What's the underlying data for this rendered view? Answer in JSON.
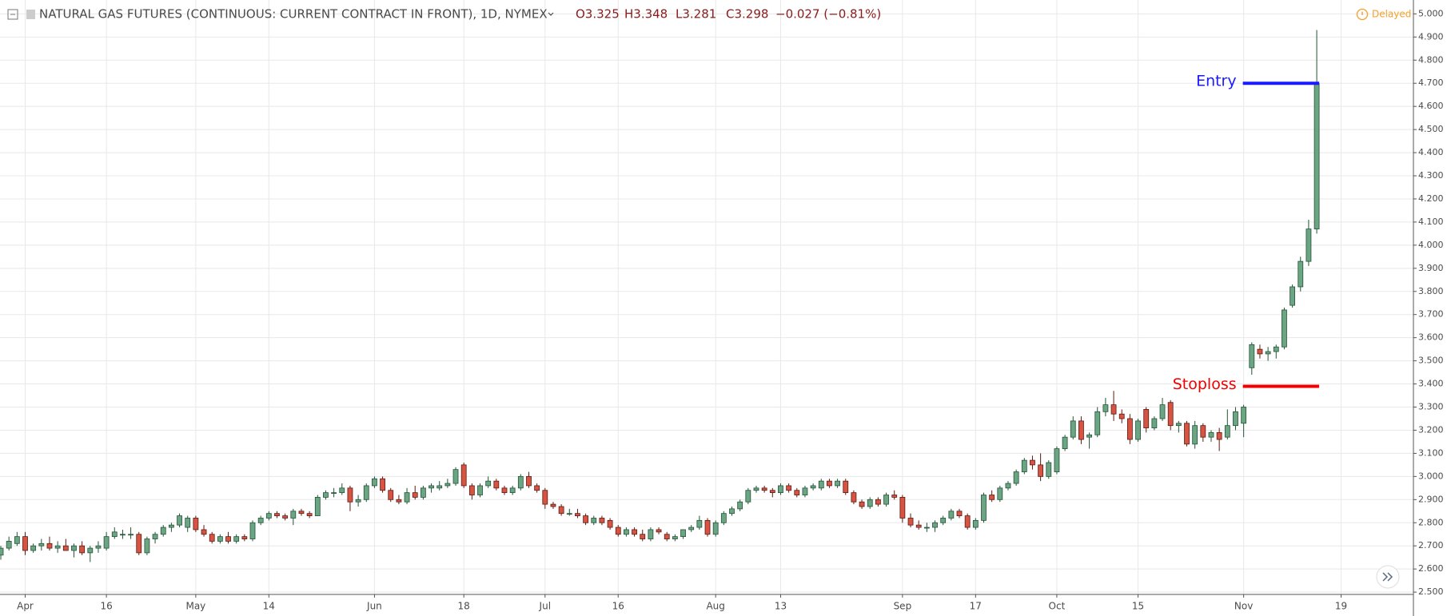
{
  "header": {
    "symbol": "NATURAL GAS FUTURES (CONTINUOUS: CURRENT CONTRACT IN FRONT), 1D, NYMEX",
    "open": "O3.325",
    "high": "H3.348",
    "low": "L3.281",
    "close": "C3.298",
    "change": "−0.027 (−0.81%)",
    "status": "Delayed"
  },
  "chart_data": {
    "type": "candlestick",
    "categories": [
      null,
      null,
      null,
      "Apr",
      null,
      null,
      null,
      null,
      null,
      null,
      null,
      null,
      null,
      "16",
      null,
      null,
      null,
      null,
      null,
      null,
      null,
      null,
      null,
      null,
      "May",
      null,
      null,
      null,
      null,
      null,
      null,
      null,
      null,
      "14",
      null,
      null,
      null,
      null,
      null,
      null,
      null,
      null,
      null,
      null,
      null,
      null,
      "Jun",
      null,
      null,
      null,
      null,
      null,
      null,
      null,
      null,
      null,
      null,
      "18",
      null,
      null,
      null,
      null,
      null,
      null,
      null,
      null,
      null,
      "Jul",
      null,
      null,
      null,
      null,
      null,
      null,
      null,
      null,
      "16",
      null,
      null,
      null,
      null,
      null,
      null,
      null,
      null,
      null,
      null,
      null,
      "Aug",
      null,
      null,
      null,
      null,
      null,
      null,
      null,
      "13",
      null,
      null,
      null,
      null,
      null,
      null,
      null,
      null,
      null,
      null,
      null,
      null,
      null,
      null,
      "Sep",
      null,
      null,
      null,
      null,
      null,
      null,
      null,
      null,
      "17",
      null,
      null,
      null,
      null,
      null,
      null,
      null,
      null,
      null,
      "Oct",
      null,
      null,
      null,
      null,
      null,
      null,
      null,
      null,
      null,
      "15",
      null,
      null,
      null,
      null,
      null,
      null,
      null,
      null,
      null,
      null,
      null,
      null,
      "Nov",
      null,
      null,
      null,
      null,
      null,
      null,
      null,
      null,
      null,
      null,
      null,
      "19",
      null,
      null,
      null,
      null,
      null,
      null,
      null,
      null
    ],
    "open": [
      2.66,
      2.69,
      2.71,
      2.74,
      2.68,
      2.7,
      2.71,
      2.69,
      2.7,
      2.68,
      2.7,
      2.67,
      2.69,
      2.69,
      2.74,
      2.75,
      2.75,
      2.75,
      2.67,
      2.73,
      2.75,
      2.78,
      2.79,
      2.78,
      2.82,
      2.77,
      2.75,
      2.72,
      2.74,
      2.72,
      2.74,
      2.73,
      2.8,
      2.82,
      2.84,
      2.83,
      2.82,
      2.85,
      2.84,
      2.83,
      2.91,
      2.93,
      2.93,
      2.95,
      2.89,
      2.9,
      2.96,
      2.99,
      2.94,
      2.9,
      2.89,
      2.93,
      2.91,
      2.95,
      2.95,
      2.96,
      2.97,
      3.05,
      2.96,
      2.92,
      2.96,
      2.98,
      2.95,
      2.93,
      2.95,
      3.0,
      2.96,
      2.94,
      2.88,
      2.87,
      2.84,
      2.84,
      2.83,
      2.8,
      2.82,
      2.81,
      2.78,
      2.75,
      2.77,
      2.75,
      2.73,
      2.77,
      2.75,
      2.73,
      2.74,
      2.77,
      2.78,
      2.81,
      2.75,
      2.8,
      2.84,
      2.86,
      2.89,
      2.94,
      2.95,
      2.94,
      2.93,
      2.96,
      2.94,
      2.92,
      2.95,
      2.95,
      2.98,
      2.96,
      2.98,
      2.93,
      2.89,
      2.87,
      2.9,
      2.88,
      2.92,
      2.91,
      2.82,
      2.79,
      2.78,
      2.78,
      2.8,
      2.82,
      2.85,
      2.83,
      2.78,
      2.81,
      2.92,
      2.9,
      2.95,
      2.97,
      3.02,
      3.07,
      3.05,
      3.0,
      3.02,
      3.12,
      3.17,
      3.24,
      3.17,
      3.18,
      3.28,
      3.31,
      3.27,
      3.25,
      3.16,
      3.29,
      3.21,
      3.25,
      3.32,
      3.22,
      3.23,
      3.14,
      3.22,
      3.17,
      3.19,
      3.17,
      3.22,
      3.23,
      3.47,
      3.55,
      3.53,
      3.54,
      3.56,
      3.74,
      3.82,
      3.93,
      4.07,
      null,
      null,
      null,
      null,
      null,
      null,
      null,
      null,
      null,
      null,
      null
    ],
    "high": [
      2.7,
      2.74,
      2.76,
      2.76,
      2.71,
      2.73,
      2.74,
      2.72,
      2.73,
      2.71,
      2.72,
      2.7,
      2.72,
      2.76,
      2.78,
      2.77,
      2.78,
      2.76,
      2.74,
      2.76,
      2.79,
      2.8,
      2.84,
      2.83,
      2.83,
      2.79,
      2.76,
      2.75,
      2.76,
      2.75,
      2.75,
      2.81,
      2.83,
      2.85,
      2.85,
      2.84,
      2.86,
      2.86,
      2.85,
      2.92,
      2.94,
      2.95,
      2.97,
      2.96,
      2.92,
      2.97,
      3.0,
      3.0,
      2.95,
      2.92,
      2.95,
      2.96,
      2.96,
      2.97,
      2.98,
      2.99,
      3.04,
      3.06,
      2.97,
      2.97,
      3.0,
      2.99,
      2.96,
      2.96,
      3.01,
      3.02,
      2.97,
      2.95,
      2.89,
      2.88,
      2.86,
      2.86,
      2.84,
      2.83,
      2.83,
      2.82,
      2.79,
      2.78,
      2.78,
      2.77,
      2.78,
      2.78,
      2.76,
      2.75,
      2.77,
      2.79,
      2.83,
      2.82,
      2.81,
      2.85,
      2.87,
      2.9,
      2.95,
      2.96,
      2.96,
      2.95,
      2.97,
      2.97,
      2.95,
      2.96,
      2.97,
      2.99,
      2.99,
      2.99,
      2.99,
      2.94,
      2.9,
      2.91,
      2.91,
      2.93,
      2.94,
      2.92,
      2.84,
      2.81,
      2.8,
      2.81,
      2.83,
      2.86,
      2.86,
      2.84,
      2.82,
      2.93,
      2.94,
      2.96,
      2.98,
      3.03,
      3.08,
      3.09,
      3.1,
      3.07,
      3.13,
      3.18,
      3.26,
      3.26,
      3.19,
      3.3,
      3.34,
      3.37,
      3.29,
      3.27,
      3.25,
      3.3,
      3.26,
      3.34,
      3.33,
      3.24,
      3.24,
      3.24,
      3.23,
      3.2,
      3.21,
      3.29,
      3.3,
      3.31,
      3.58,
      3.57,
      3.56,
      3.57,
      3.73,
      3.83,
      3.95,
      4.11,
      4.93,
      null,
      null,
      null,
      null,
      null,
      null,
      null,
      null,
      null,
      null,
      null
    ],
    "low": [
      2.64,
      2.68,
      2.7,
      2.66,
      2.67,
      2.68,
      2.68,
      2.67,
      2.68,
      2.65,
      2.66,
      2.63,
      2.67,
      2.68,
      2.73,
      2.73,
      2.73,
      2.66,
      2.66,
      2.71,
      2.74,
      2.76,
      2.78,
      2.76,
      2.76,
      2.74,
      2.71,
      2.71,
      2.71,
      2.71,
      2.72,
      2.72,
      2.79,
      2.81,
      2.82,
      2.81,
      2.79,
      2.83,
      2.82,
      2.83,
      2.9,
      2.91,
      2.92,
      2.85,
      2.87,
      2.89,
      2.95,
      2.93,
      2.89,
      2.88,
      2.88,
      2.9,
      2.9,
      2.93,
      2.94,
      2.95,
      2.96,
      2.95,
      2.9,
      2.91,
      2.95,
      2.94,
      2.92,
      2.92,
      2.94,
      2.95,
      2.93,
      2.86,
      2.86,
      2.83,
      2.83,
      2.82,
      2.79,
      2.79,
      2.79,
      2.77,
      2.74,
      2.74,
      2.74,
      2.72,
      2.72,
      2.75,
      2.72,
      2.72,
      2.73,
      2.76,
      2.77,
      2.74,
      2.74,
      2.79,
      2.83,
      2.85,
      2.88,
      2.93,
      2.93,
      2.91,
      2.92,
      2.93,
      2.91,
      2.91,
      2.94,
      2.94,
      2.95,
      2.95,
      2.92,
      2.88,
      2.86,
      2.86,
      2.87,
      2.87,
      2.9,
      2.8,
      2.78,
      2.77,
      2.76,
      2.76,
      2.79,
      2.81,
      2.82,
      2.77,
      2.77,
      2.8,
      2.89,
      2.89,
      2.94,
      2.96,
      3.01,
      3.03,
      2.98,
      2.99,
      3.01,
      3.11,
      3.16,
      3.14,
      3.12,
      3.17,
      3.26,
      3.24,
      3.23,
      3.14,
      3.15,
      3.19,
      3.2,
      3.24,
      3.2,
      3.19,
      3.13,
      3.12,
      3.15,
      3.15,
      3.11,
      3.16,
      3.2,
      3.17,
      3.44,
      3.51,
      3.5,
      3.51,
      3.55,
      3.73,
      3.8,
      3.91,
      4.05,
      null,
      null,
      null,
      null,
      null,
      null,
      null,
      null,
      null,
      null,
      null
    ],
    "close": [
      2.69,
      2.72,
      2.74,
      2.68,
      2.7,
      2.71,
      2.69,
      2.7,
      2.68,
      2.7,
      2.67,
      2.69,
      2.7,
      2.74,
      2.76,
      2.75,
      2.75,
      2.67,
      2.73,
      2.75,
      2.78,
      2.79,
      2.83,
      2.82,
      2.77,
      2.75,
      2.72,
      2.74,
      2.72,
      2.74,
      2.73,
      2.8,
      2.82,
      2.84,
      2.83,
      2.82,
      2.85,
      2.84,
      2.83,
      2.91,
      2.93,
      2.93,
      2.95,
      2.89,
      2.9,
      2.96,
      2.99,
      2.94,
      2.9,
      2.89,
      2.93,
      2.91,
      2.95,
      2.96,
      2.96,
      2.97,
      3.03,
      2.96,
      2.92,
      2.96,
      2.98,
      2.95,
      2.93,
      2.95,
      3.0,
      2.96,
      2.94,
      2.88,
      2.87,
      2.84,
      2.84,
      2.83,
      2.8,
      2.82,
      2.8,
      2.78,
      2.75,
      2.77,
      2.75,
      2.73,
      2.77,
      2.76,
      2.73,
      2.74,
      2.77,
      2.78,
      2.81,
      2.75,
      2.8,
      2.84,
      2.86,
      2.89,
      2.94,
      2.95,
      2.94,
      2.93,
      2.96,
      2.94,
      2.92,
      2.95,
      2.96,
      2.98,
      2.96,
      2.98,
      2.93,
      2.89,
      2.87,
      2.9,
      2.88,
      2.92,
      2.91,
      2.82,
      2.79,
      2.78,
      2.78,
      2.8,
      2.82,
      2.85,
      2.83,
      2.78,
      2.81,
      2.92,
      2.9,
      2.95,
      2.97,
      3.02,
      3.07,
      3.05,
      3.0,
      3.06,
      3.12,
      3.17,
      3.24,
      3.16,
      3.18,
      3.28,
      3.31,
      3.27,
      3.25,
      3.16,
      3.24,
      3.21,
      3.25,
      3.31,
      3.22,
      3.23,
      3.14,
      3.22,
      3.17,
      3.19,
      3.16,
      3.22,
      3.28,
      3.3,
      3.57,
      3.53,
      3.54,
      3.56,
      3.72,
      3.82,
      3.93,
      4.07,
      4.7,
      null,
      null,
      null,
      null,
      null,
      null,
      null,
      null,
      null,
      null,
      null
    ],
    "up_color": "#6ba583",
    "down_color": "#d75442",
    "ylim": [
      2.49,
      5.06
    ],
    "yticks": [
      {
        "value": 2.5,
        "label": "2.500"
      },
      {
        "value": 2.6,
        "label": "2.600"
      },
      {
        "value": 2.7,
        "label": "2.700"
      },
      {
        "value": 2.8,
        "label": "2.800"
      },
      {
        "value": 2.9,
        "label": "2.900"
      },
      {
        "value": 3.0,
        "label": "3.000"
      },
      {
        "value": 3.1,
        "label": "3.100"
      },
      {
        "value": 3.2,
        "label": "3.200"
      },
      {
        "value": 3.3,
        "label": "3.300"
      },
      {
        "value": 3.4,
        "label": "3.400"
      },
      {
        "value": 3.5,
        "label": "3.500"
      },
      {
        "value": 3.6,
        "label": "3.600"
      },
      {
        "value": 3.7,
        "label": "3.700"
      },
      {
        "value": 3.8,
        "label": "3.800"
      },
      {
        "value": 3.9,
        "label": "3.900"
      },
      {
        "value": 4.0,
        "label": "4.000"
      },
      {
        "value": 4.1,
        "label": "4.100"
      },
      {
        "value": 4.2,
        "label": "4.200"
      },
      {
        "value": 4.3,
        "label": "4.300"
      },
      {
        "value": 4.4,
        "label": "4.400"
      },
      {
        "value": 4.5,
        "label": "4.500"
      },
      {
        "value": 4.6,
        "label": "4.600"
      },
      {
        "value": 4.7,
        "label": "4.700"
      },
      {
        "value": 4.8,
        "label": "4.800"
      },
      {
        "value": 4.9,
        "label": "4.900"
      },
      {
        "value": 5.0,
        "label": "5.000"
      }
    ],
    "grid": true,
    "annotations": [
      {
        "label": "Entry",
        "value": 4.7,
        "color": "#1a1aff"
      },
      {
        "label": "Stoploss",
        "value": 3.39,
        "color": "#f00000"
      }
    ]
  }
}
